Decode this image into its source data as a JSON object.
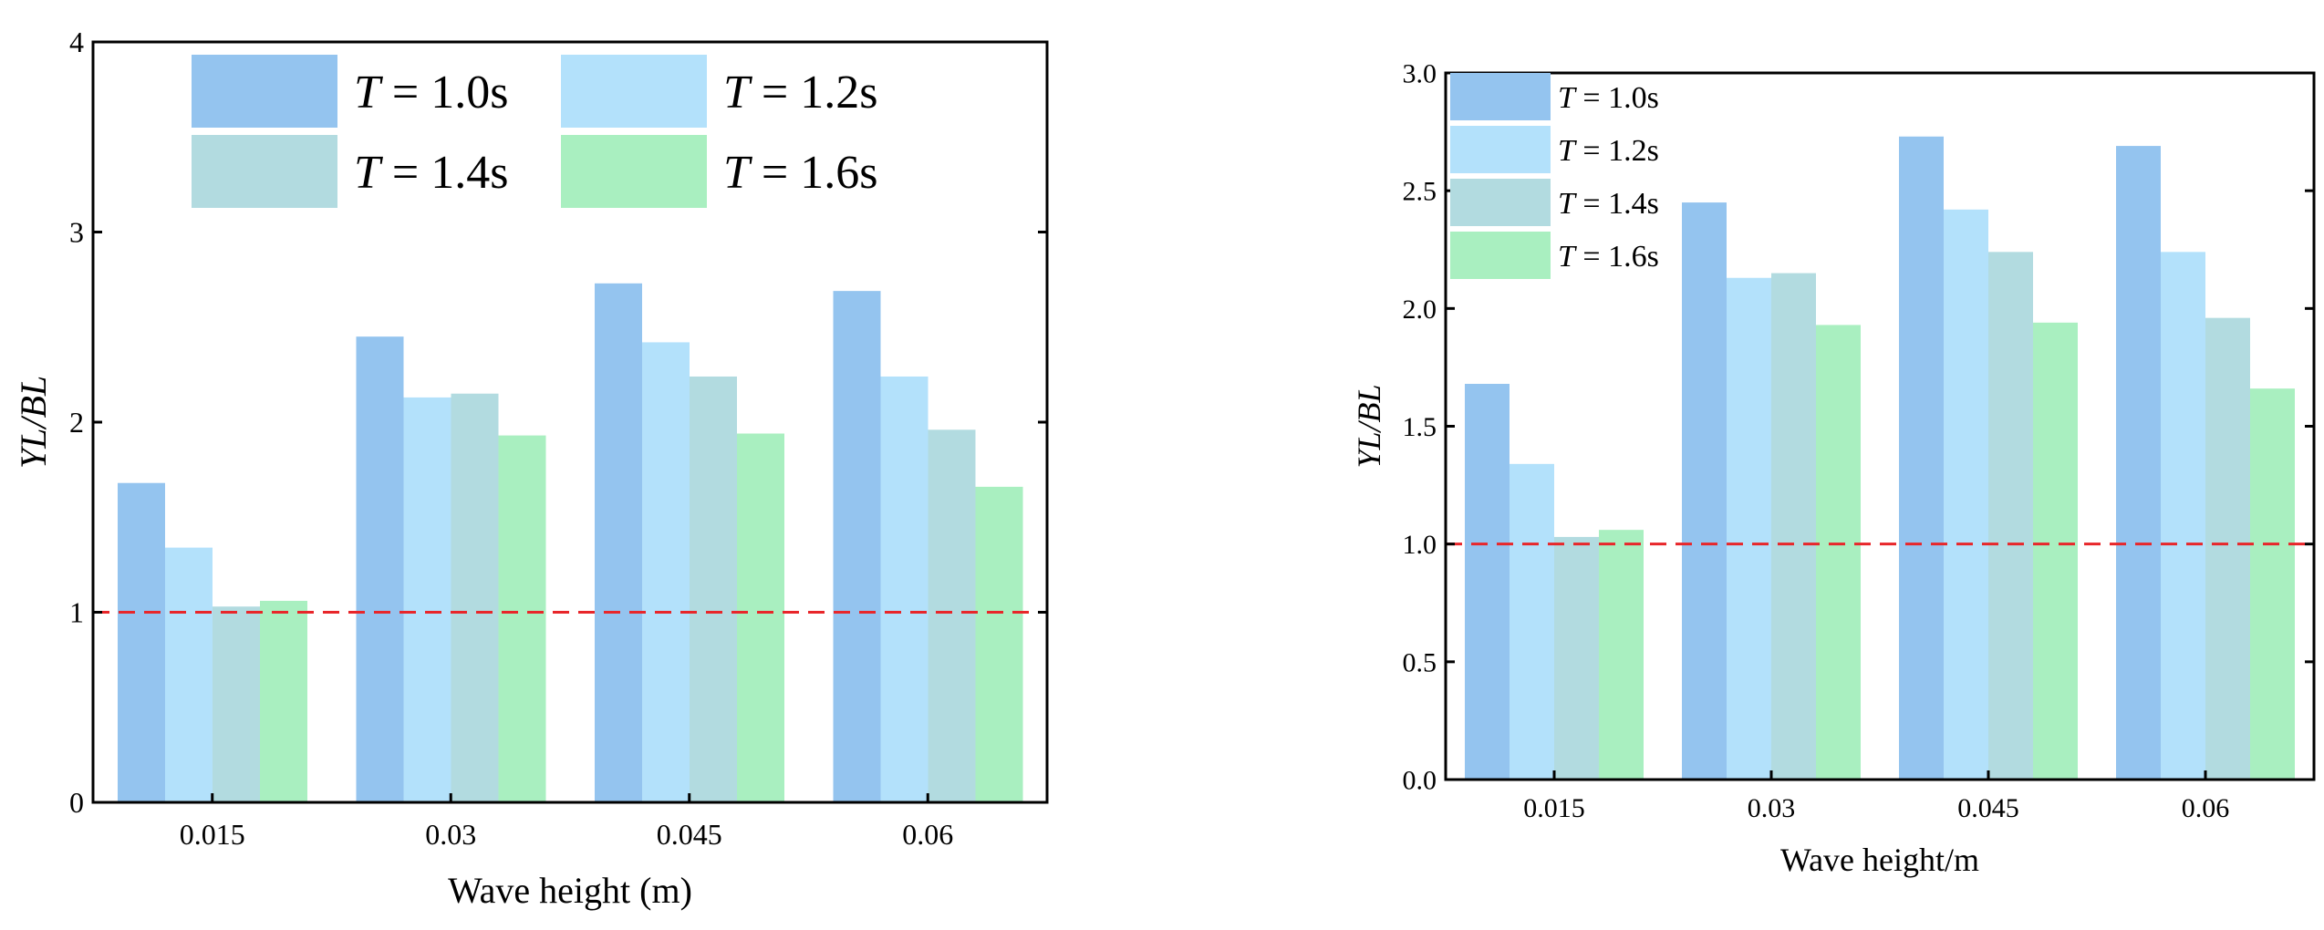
{
  "chart_data": [
    {
      "type": "bar",
      "panel": "left",
      "categories": [
        "0.015",
        "0.03",
        "0.045",
        "0.06"
      ],
      "series": [
        {
          "name": "T = 1.0s",
          "symbol": "T",
          "suffix": " = 1.0s",
          "color": "#94c4ef",
          "values": [
            1.68,
            2.45,
            2.73,
            2.69
          ]
        },
        {
          "name": "T = 1.2s",
          "symbol": "T",
          "suffix": " = 1.2s",
          "color": "#b3e1fb",
          "values": [
            1.34,
            2.13,
            2.42,
            2.24
          ]
        },
        {
          "name": "T = 1.4s",
          "symbol": "T",
          "suffix": " = 1.4s",
          "color": "#b2dbe0",
          "values": [
            1.03,
            2.15,
            2.24,
            1.96
          ]
        },
        {
          "name": "T = 1.6s",
          "symbol": "T",
          "suffix": " = 1.6s",
          "color": "#a9efc0",
          "values": [
            1.06,
            1.93,
            1.94,
            1.66
          ]
        }
      ],
      "xlabel": "Wave height (m)",
      "ylabel": "YL/BL",
      "ylim": [
        0,
        4
      ],
      "yticks": [
        "0",
        "1",
        "2",
        "3",
        "4"
      ],
      "yticks_values": [
        0,
        1,
        2,
        3,
        4
      ],
      "reference_line": {
        "y": 1.0,
        "color": "#e8262a",
        "style": "dashed"
      },
      "legend": {
        "placement": "top",
        "columns": 2
      }
    },
    {
      "type": "bar",
      "panel": "right",
      "categories": [
        "0.015",
        "0.03",
        "0.045",
        "0.06"
      ],
      "series": [
        {
          "name": "T = 1.0s",
          "symbol": "T",
          "suffix": " = 1.0s",
          "color": "#94c4ef",
          "values": [
            1.68,
            2.45,
            2.73,
            2.69
          ]
        },
        {
          "name": "T = 1.2s",
          "symbol": "T",
          "suffix": " = 1.2s",
          "color": "#b3e1fb",
          "values": [
            1.34,
            2.13,
            2.42,
            2.24
          ]
        },
        {
          "name": "T = 1.4s",
          "symbol": "T",
          "suffix": " = 1.4s",
          "color": "#b2dbe0",
          "values": [
            1.03,
            2.15,
            2.24,
            1.96
          ]
        },
        {
          "name": "T = 1.6s",
          "symbol": "T",
          "suffix": " = 1.6s",
          "color": "#a9efc0",
          "values": [
            1.06,
            1.93,
            1.94,
            1.66
          ]
        }
      ],
      "xlabel": "Wave height/m",
      "ylabel": "YL/BL",
      "ylim": [
        0,
        3
      ],
      "yticks": [
        "0.0",
        "0.5",
        "1.0",
        "1.5",
        "2.0",
        "2.5",
        "3.0"
      ],
      "yticks_values": [
        0,
        0.5,
        1.0,
        1.5,
        2.0,
        2.5,
        3.0
      ],
      "reference_line": {
        "y": 1.0,
        "color": "#e8262a",
        "style": "dashed"
      },
      "legend": {
        "placement": "top-left",
        "columns": 1
      }
    }
  ]
}
